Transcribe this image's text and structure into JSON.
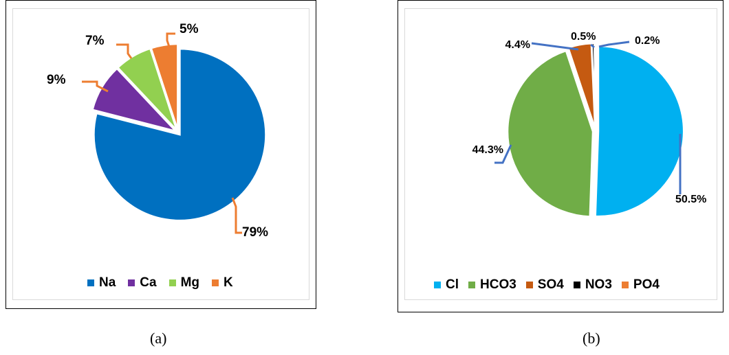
{
  "captions": {
    "a": "(a)",
    "b": "(b)"
  },
  "chart_data": [
    {
      "type": "pie",
      "title": "",
      "slices": [
        {
          "label": "Na",
          "value": 79,
          "display": "79%",
          "color": "#0070c0"
        },
        {
          "label": "Ca",
          "value": 9,
          "display": "9%",
          "color": "#7030a0"
        },
        {
          "label": "Mg",
          "value": 7,
          "display": "7%",
          "color": "#92d050"
        },
        {
          "label": "K",
          "value": 5,
          "display": "5%",
          "color": "#ed7d31"
        }
      ],
      "legend_position": "bottom",
      "leader_line_color": "#ed7d31"
    },
    {
      "type": "pie",
      "title": "",
      "slices": [
        {
          "label": "Cl",
          "value": 50.5,
          "display": "50.5%",
          "color": "#00b0f0"
        },
        {
          "label": "HCO3",
          "value": 44.3,
          "display": "44.3%",
          "color": "#70ad47"
        },
        {
          "label": "SO4",
          "value": 4.4,
          "display": "4.4%",
          "color": "#c55a11"
        },
        {
          "label": "NO3",
          "value": 0.5,
          "display": "0.5%",
          "color": "#000000"
        },
        {
          "label": "PO4",
          "value": 0.2,
          "display": "0.2%",
          "color": "#ed7d31"
        }
      ],
      "legend_position": "bottom",
      "leader_line_color": "#4472c4"
    }
  ]
}
